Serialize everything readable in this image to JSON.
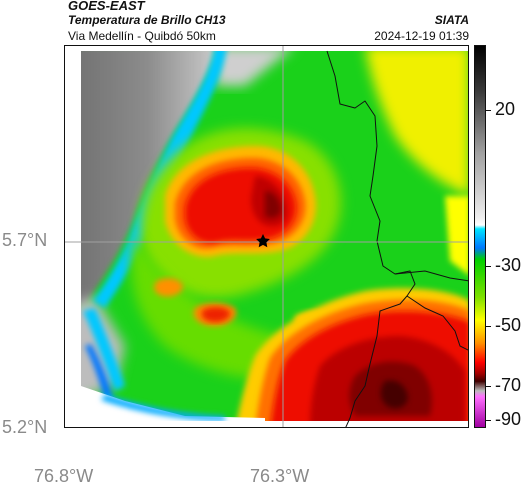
{
  "header": {
    "title": "GOES-EAST",
    "subtitle": "Temperatura de Brillo CH13",
    "route": "Via Medellín - Quibdó 50km",
    "organization": "SIATA",
    "datetime": "2024-12-19 01:39"
  },
  "axes": {
    "lat_labels": [
      "5.7°N",
      "5.2°N"
    ],
    "lon_labels": [
      "76.8°W",
      "76.3°W"
    ]
  },
  "colorbar": {
    "tick_labels": [
      "20",
      "-30",
      "-50",
      "-70",
      "-90"
    ],
    "colors": [
      "#000000",
      "#2a2a2a",
      "#6e6e6e",
      "#b4b4b4",
      "#e6e6e6",
      "#ffffff",
      "#00e5ff",
      "#0077ff",
      "#00e000",
      "#7fe000",
      "#ffff00",
      "#ff9000",
      "#ff0000",
      "#a00000",
      "#400000",
      "#808080",
      "#ff70ff",
      "#a000a0"
    ]
  },
  "map": {
    "marker": "star-icon",
    "colors": {
      "cold_gray_dark": "#7a7a7a",
      "cold_gray_light": "#d0d0d0",
      "cyan": "#00ccff",
      "blue": "#0066ff",
      "green": "#00d000",
      "light_green": "#66dd00",
      "yellow_green": "#ccee00",
      "yellow": "#ffff00",
      "orange": "#ff8800",
      "red": "#ee1100",
      "dark_red": "#990000",
      "darkest": "#3a0000"
    }
  }
}
